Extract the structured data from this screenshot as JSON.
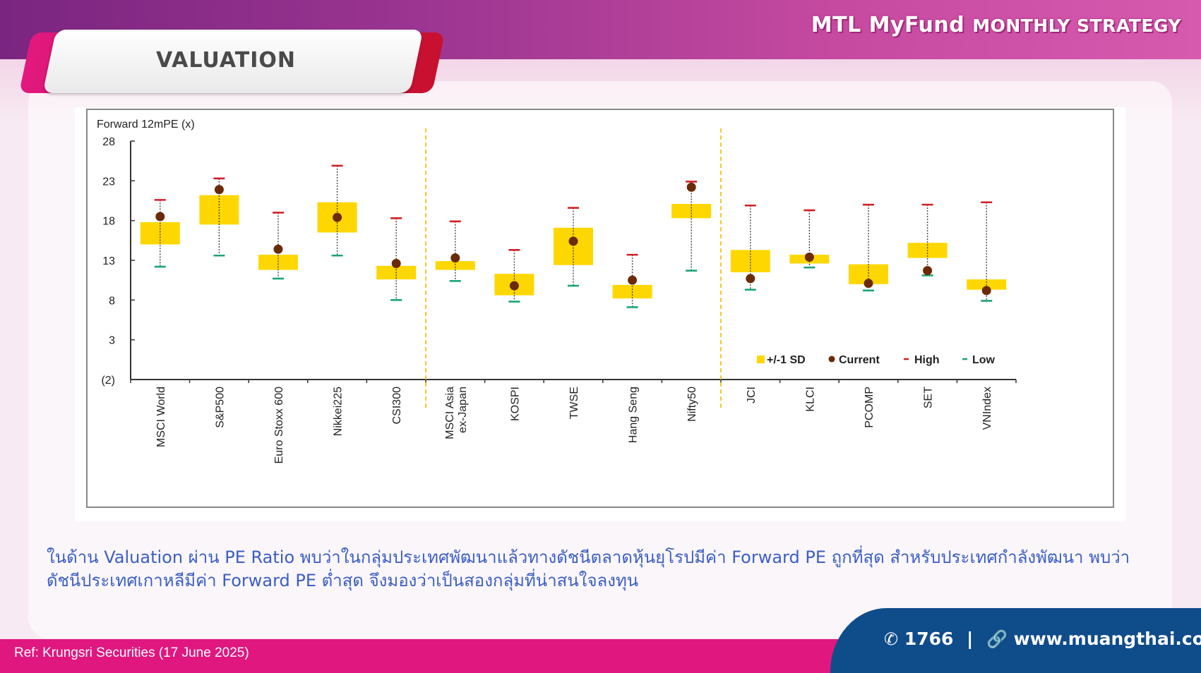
{
  "header": {
    "brand_main": "MTL MyFund",
    "brand_sub": "MONTHLY STRATEGY",
    "section_title": "VALUATION"
  },
  "chart_data": {
    "type": "box",
    "title": "Forward 12mPE (x)",
    "ylim": [
      -2,
      28
    ],
    "yticks": [
      "28",
      "23",
      "18",
      "13",
      "8",
      "3",
      "(2)"
    ],
    "ytick_values": [
      28,
      23,
      18,
      13,
      8,
      3,
      -2
    ],
    "categories": [
      "MSCI World",
      "S&P500",
      "Euro Stoxx 600",
      "Nikkei225",
      "CSI300",
      "MSCI Asia ex-Japan",
      "KOSPI",
      "TWSE",
      "Hang Seng",
      "Nifty50",
      "JCI",
      "KLCI",
      "PCOMP",
      "SET",
      "VNIndex"
    ],
    "category_labels": [
      [
        "MSCI World"
      ],
      [
        "S&P500"
      ],
      [
        "Euro Stoxx 600"
      ],
      [
        "Nikkei225"
      ],
      [
        "CSI300"
      ],
      [
        "MSCI Asia",
        "ex-Japan"
      ],
      [
        "KOSPI"
      ],
      [
        "TWSE"
      ],
      [
        "Hang Seng"
      ],
      [
        "Nifty50"
      ],
      [
        "JCI"
      ],
      [
        "KLCI"
      ],
      [
        "PCOMP"
      ],
      [
        "SET"
      ],
      [
        "VNIndex"
      ]
    ],
    "series": [
      {
        "name": "+/-1 SD",
        "lower": [
          15.0,
          17.5,
          11.8,
          16.5,
          10.6,
          11.8,
          8.6,
          12.4,
          8.2,
          18.3,
          11.5,
          12.6,
          10.0,
          13.3,
          9.3
        ],
        "upper": [
          17.8,
          21.2,
          13.7,
          20.3,
          12.3,
          12.9,
          11.3,
          17.1,
          9.9,
          20.1,
          14.3,
          13.7,
          12.5,
          15.2,
          10.6
        ]
      },
      {
        "name": "Current",
        "values": [
          18.5,
          21.9,
          14.4,
          18.4,
          12.6,
          13.3,
          9.8,
          15.4,
          10.5,
          22.2,
          10.7,
          13.4,
          10.1,
          11.7,
          9.2
        ]
      },
      {
        "name": "High",
        "values": [
          20.6,
          23.3,
          19.0,
          24.9,
          18.3,
          17.9,
          14.3,
          19.6,
          13.7,
          22.9,
          19.9,
          19.3,
          20.0,
          20.0,
          20.3
        ]
      },
      {
        "name": "Low",
        "values": [
          12.2,
          13.6,
          10.7,
          13.6,
          8.0,
          10.4,
          7.8,
          9.8,
          7.1,
          11.7,
          9.3,
          12.1,
          9.2,
          11.1,
          7.9
        ]
      }
    ],
    "group_dividers_after": [
      4,
      9
    ],
    "legend_position": "bottom-right",
    "colors": {
      "sd": "#ffd700",
      "current": "#6b2a08",
      "high": "#d21f26",
      "low": "#1aa47a",
      "divider": "#f5b800"
    }
  },
  "description": "ในด้าน Valuation ผ่าน PE Ratio พบว่าในกลุ่มประเทศพัฒนาแล้วทางดัชนีตลาดหุ้นยุโรปมีค่า Forward PE ถูกที่สุด สำหรับประเทศกำลังพัฒนา พบว่าดัชนีประเทศเกาหลีมีค่า Forward PE ต่ำสุด จึงมองว่าเป็นสองกลุ่มที่น่าสนใจลงทุน",
  "footer": {
    "ref": "Ref: Krungsri Securities (17 June 2025)",
    "phone": "1766",
    "separator": "|",
    "website": "www.muangthai.co.th"
  }
}
